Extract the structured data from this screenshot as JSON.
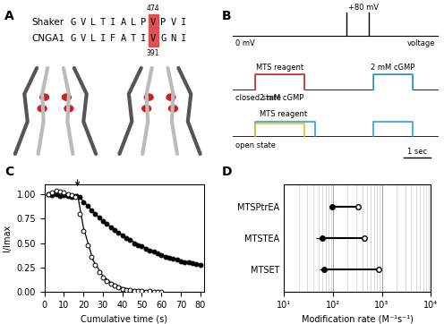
{
  "panel_a": {
    "label": "A",
    "sequences": [
      {
        "name": "Shaker",
        "sequence": "GVLTIALPVPVI",
        "number": "474"
      },
      {
        "name": "CNGA1",
        "sequence": "GVLIFATIVGNI",
        "number": "391"
      }
    ],
    "highlight_color": "#e05050"
  },
  "panel_b": {
    "label": "B",
    "rows": [
      {
        "name": "voltage",
        "level_label": "0 mV",
        "pulse_label": "+80 mV"
      },
      {
        "name": "closed state",
        "steps": [
          {
            "label": "MTS reagent",
            "color": "#e03030"
          },
          {
            "label": "2 mM cGMP",
            "color": "#30a0e0"
          }
        ]
      },
      {
        "name": "open state",
        "steps": [
          {
            "label": "2 mM cGMP",
            "color": "#30a0e0"
          },
          {
            "label": "MTS reagent",
            "color": "#e8c030"
          },
          {
            "label": "",
            "color": "#30a0e0"
          }
        ]
      }
    ],
    "scale_bar": "1 sec"
  },
  "chart_data": [
    {
      "panel": "C",
      "type": "scatter",
      "x_label": "Cumulative time (s)",
      "y_label": "I/Imax",
      "xlim": [
        0,
        82
      ],
      "xticks": [
        0,
        10,
        20,
        30,
        40,
        50,
        60,
        70,
        80
      ],
      "ylim": [
        0,
        1.1
      ],
      "yticks": [
        {
          "value": 0,
          "label": "0.00"
        },
        {
          "value": 0.25,
          "label": "0.25"
        },
        {
          "value": 0.5,
          "label": "0.50"
        },
        {
          "value": 0.75,
          "label": "0.75"
        },
        {
          "value": 1.0,
          "label": "1.00"
        }
      ],
      "arrow_x": 17,
      "series": [
        {
          "color": "#000000",
          "marker": "filled",
          "x": [
            2,
            4,
            6,
            8,
            10,
            12,
            14,
            16,
            18,
            20,
            22,
            24,
            26,
            28,
            30,
            32,
            34,
            36,
            38,
            40,
            42,
            44,
            46,
            48,
            50,
            52,
            54,
            56,
            58,
            60,
            62,
            64,
            66,
            68,
            70,
            72,
            74,
            76,
            78,
            80
          ],
          "values": [
            1.0,
            0.99,
            1.0,
            0.98,
            0.99,
            0.98,
            0.97,
            0.98,
            0.97,
            0.92,
            0.88,
            0.84,
            0.8,
            0.76,
            0.73,
            0.7,
            0.66,
            0.63,
            0.61,
            0.58,
            0.55,
            0.53,
            0.5,
            0.48,
            0.47,
            0.44,
            0.42,
            0.41,
            0.39,
            0.38,
            0.36,
            0.35,
            0.34,
            0.33,
            0.31,
            0.3,
            0.3,
            0.29,
            0.28,
            0.27
          ]
        },
        {
          "color": "#000000",
          "marker": "open",
          "x": [
            2,
            4,
            6,
            8,
            10,
            12,
            14,
            16,
            18,
            20,
            22,
            24,
            26,
            28,
            30,
            32,
            34,
            36,
            38,
            40,
            42,
            44,
            46,
            48,
            50,
            52,
            54,
            56,
            58,
            60
          ],
          "values": [
            1.0,
            1.02,
            1.04,
            1.03,
            1.02,
            1.0,
            0.99,
            0.97,
            0.8,
            0.62,
            0.48,
            0.36,
            0.27,
            0.2,
            0.15,
            0.11,
            0.08,
            0.06,
            0.04,
            0.03,
            0.02,
            0.02,
            0.01,
            0.01,
            0.01,
            0.0,
            0.01,
            0.0,
            0.0,
            0.0
          ]
        },
        {
          "type": "line",
          "color": "#000000",
          "x": [
            17,
            20,
            25,
            30,
            35,
            40,
            45,
            50,
            55,
            60,
            65,
            70,
            75,
            80
          ],
          "values": [
            1.0,
            0.93,
            0.82,
            0.73,
            0.65,
            0.58,
            0.52,
            0.47,
            0.42,
            0.38,
            0.35,
            0.32,
            0.3,
            0.28
          ]
        },
        {
          "type": "line",
          "color": "#000000",
          "x": [
            17,
            20,
            25,
            30,
            35,
            40,
            45,
            50,
            55,
            60
          ],
          "values": [
            1.0,
            0.66,
            0.32,
            0.16,
            0.08,
            0.04,
            0.02,
            0.01,
            0.0,
            0.0
          ]
        }
      ]
    },
    {
      "panel": "D",
      "type": "dumbbell",
      "orientation": "horizontal",
      "log": "x",
      "grid": true,
      "x_label": "Modification rate (M⁻¹s⁻¹)",
      "xlim": [
        10,
        10000
      ],
      "xticks": [
        {
          "value": 10,
          "label": "10¹"
        },
        {
          "value": 100,
          "label": "10²"
        },
        {
          "value": 1000,
          "label": "10³"
        },
        {
          "value": 10000,
          "label": "10⁴"
        }
      ],
      "categories": [
        "MTSPtrEA",
        "MTSTEA",
        "MTSET"
      ],
      "series": [
        {
          "color": "#000000",
          "marker": "filled",
          "values": [
            95,
            60,
            65
          ],
          "errors": [
            10,
            15,
            12
          ]
        },
        {
          "color": "#000000",
          "marker": "open",
          "values": [
            320,
            430,
            850
          ],
          "errors": [
            30,
            40,
            60
          ]
        }
      ]
    }
  ]
}
